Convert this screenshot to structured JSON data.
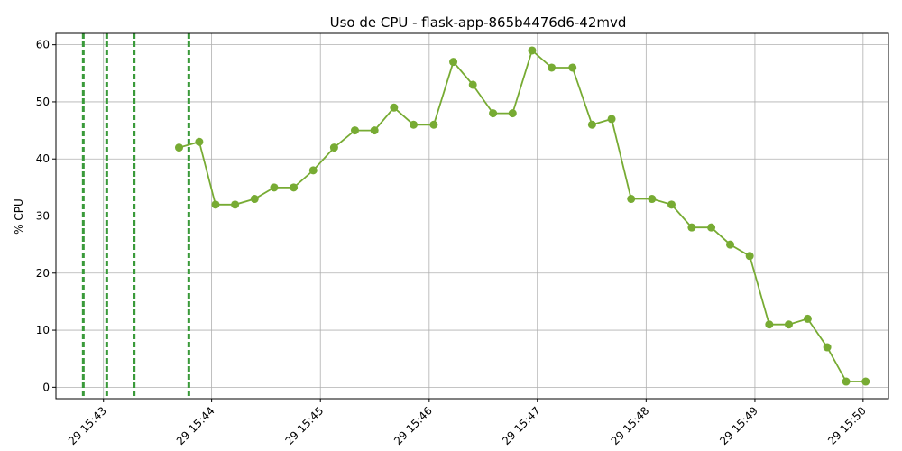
{
  "chart_data": {
    "type": "line",
    "title": "Uso de CPU - flask-app-865b4476d6-42mvd",
    "xlabel": "",
    "ylabel": "% CPU",
    "x_tick_labels": [
      "29 15:43",
      "29 15:44",
      "29 15:45",
      "29 15:46",
      "29 15:47",
      "29 15:48",
      "29 15:49",
      "29 15:50"
    ],
    "x_tick_values": [
      15.7167,
      15.7333,
      15.75,
      15.7667,
      15.7833,
      15.8,
      15.8167,
      15.8333
    ],
    "xlim": [
      15.7094,
      15.8372
    ],
    "ylim": [
      -2,
      62
    ],
    "y_ticks": [
      0,
      10,
      20,
      30,
      40,
      50,
      60
    ],
    "grid": true,
    "line_color": "#77ab33",
    "event_color": "#3a9a3a",
    "event_lines_x": [
      15.7136,
      15.7172,
      15.7214,
      15.7298
    ],
    "series": [
      {
        "x": [
          15.7283,
          15.7314,
          15.7339,
          15.7369,
          15.7399,
          15.7429,
          15.7459,
          15.7489,
          15.7521,
          15.7553,
          15.7583,
          15.7613,
          15.7643,
          15.7674,
          15.7704,
          15.7734,
          15.7765,
          15.7795,
          15.7825,
          15.7855,
          15.7887,
          15.7917,
          15.7947,
          15.7977,
          15.8009,
          15.8039,
          15.807,
          15.81,
          15.8129,
          15.8159,
          15.8189,
          15.8219,
          15.8248,
          15.8278,
          15.8307,
          15.8337
        ],
        "values": [
          42,
          43,
          32,
          32,
          33,
          35,
          35,
          38,
          42,
          45,
          45,
          49,
          46,
          46,
          57,
          53,
          48,
          48,
          59,
          56,
          56,
          46,
          47,
          33,
          33,
          32,
          28,
          28,
          25,
          23,
          11,
          11,
          12,
          7,
          1,
          1
        ]
      }
    ]
  }
}
